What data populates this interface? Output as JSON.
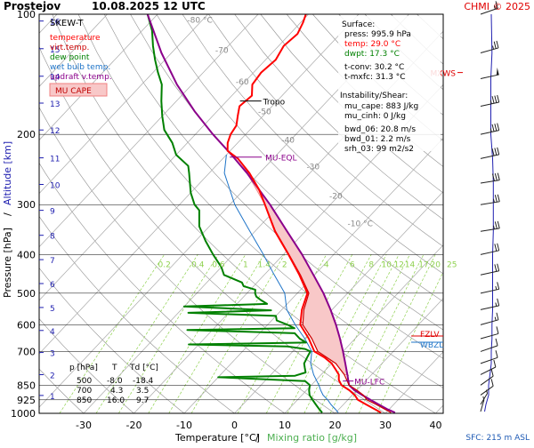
{
  "header": {
    "station": "Prostejov",
    "datetime": "10.08.2025 12 UTC",
    "copyright": "CHMI © 2025"
  },
  "colors": {
    "temperature": "#ff0000",
    "virt_temp": "#cc0000",
    "dew_point": "#008000",
    "wet_bulb": "#1e74c8",
    "updraft": "#8b008b",
    "mu_cape": "#f08080",
    "mu_cape_fill": "#f8c8c8",
    "isotherm": "#a8a8a8",
    "mixing_ratio": "#8fd14f",
    "dry_adiabat": "#909090",
    "altitude": "#2020b0",
    "isobar": "#000000",
    "wind": "#202020"
  },
  "legend": {
    "title": "SKEW-T",
    "items": [
      {
        "key": "temperature",
        "label": "temperature",
        "color": "#ff0000"
      },
      {
        "key": "virt_temp",
        "label": "virt.temp.",
        "color": "#cc0000"
      },
      {
        "key": "dew_point",
        "label": "dew point",
        "color": "#008000"
      },
      {
        "key": "wet_bulb",
        "label": "wet bulb temp.",
        "color": "#1e74c8"
      },
      {
        "key": "updraft",
        "label": "updraft v.temp.",
        "color": "#8b008b"
      }
    ],
    "cape_label": "MU CAPE"
  },
  "surface": {
    "title": "Surface:",
    "press": "press: 995.9 hPa",
    "temp": "temp: 29.0 °C",
    "dwpt": "dwpt: 17.3 °C",
    "tconv": "t-conv: 30.2 °C",
    "tmxfc": "t-mxfc: 31.3 °C"
  },
  "instability": {
    "title": "Instability/Shear:",
    "mu_cape": "mu_cape: 883 J/kg",
    "mu_cinh": "mu_cinh: 0 J/kg",
    "bwd_06": "bwd_06: 20.8 m/s",
    "bwd_01": "bwd_01: 2.2 m/s",
    "srh_03": "srh_03: 99 m2/s2"
  },
  "table": {
    "headers": [
      "p [hPa]",
      "T",
      "Td [°C]"
    ],
    "rows": [
      [
        "500",
        "-8.0",
        "-18.4"
      ],
      [
        "700",
        "4.3",
        "3.5"
      ],
      [
        "850",
        "16.0",
        "9.7"
      ]
    ]
  },
  "annotations": {
    "tropo": "Tropo",
    "mu_eql": "MU-EQL",
    "mu_lfc": "MU-LFC",
    "mxws": "MXWS",
    "fzlv": "FZLV",
    "wbzl": "WBZL",
    "sfc": "SFC: 215 m ASL"
  },
  "chart_data": {
    "type": "skew-t",
    "xlabel": "Temperature [°C]",
    "xlabel_sep": "/",
    "xlabel2": "Mixing ratio [g/kg]",
    "ylabel": "Pressure [hPa]",
    "ylabel_sep": "/",
    "ylabel2": "Altitude [km]",
    "pressure_ticks": [
      100,
      200,
      300,
      400,
      500,
      600,
      700,
      850,
      925,
      1000
    ],
    "temperature_ticks": [
      -30,
      -20,
      -10,
      0,
      10,
      20,
      30,
      40
    ],
    "xlim": [
      -35,
      42
    ],
    "ylim": [
      1000,
      100
    ],
    "isotherm_labels": [
      -80,
      -70,
      -60,
      -50,
      -40,
      -30,
      -20,
      -10
    ],
    "mixing_ratio_values": [
      "0.2",
      "0.4",
      "0.6",
      "1",
      "1.4",
      "2",
      "4",
      "6",
      "8",
      "10",
      "12",
      "14",
      "17",
      "20",
      "25"
    ],
    "altitude_km": [
      {
        "km": 1,
        "p": 902
      },
      {
        "km": 2,
        "p": 800
      },
      {
        "km": 3,
        "p": 704
      },
      {
        "km": 4,
        "p": 620
      },
      {
        "km": 5,
        "p": 543
      },
      {
        "km": 6,
        "p": 473
      },
      {
        "km": 7,
        "p": 412
      },
      {
        "km": 8,
        "p": 358
      },
      {
        "km": 9,
        "p": 310
      },
      {
        "km": 10,
        "p": 267
      },
      {
        "km": 11,
        "p": 229
      },
      {
        "km": 12,
        "p": 195
      },
      {
        "km": 13,
        "p": 167
      },
      {
        "km": 14,
        "p": 143
      },
      {
        "km": 15,
        "p": 122
      },
      {
        "km": 16,
        "p": 104
      }
    ],
    "series": [
      {
        "key": "temperature",
        "name": "temperature",
        "points": [
          [
            995.9,
            29.0
          ],
          [
            975,
            27.0
          ],
          [
            950,
            24.5
          ],
          [
            925,
            22.0
          ],
          [
            900,
            20.5
          ],
          [
            875,
            18.5
          ],
          [
            850,
            16.0
          ],
          [
            825,
            14.5
          ],
          [
            800,
            13.5
          ],
          [
            775,
            11.8
          ],
          [
            750,
            10.0
          ],
          [
            725,
            7.5
          ],
          [
            700,
            4.3
          ],
          [
            650,
            0.8
          ],
          [
            600,
            -3.5
          ],
          [
            550,
            -6.0
          ],
          [
            500,
            -8.0
          ],
          [
            450,
            -13.0
          ],
          [
            400,
            -19.0
          ],
          [
            350,
            -26.0
          ],
          [
            300,
            -33.0
          ],
          [
            275,
            -37.0
          ],
          [
            250,
            -42.0
          ],
          [
            230,
            -47.0
          ],
          [
            220,
            -50.5
          ],
          [
            210,
            -52.0
          ],
          [
            200,
            -53.0
          ],
          [
            190,
            -53.5
          ],
          [
            180,
            -55.0
          ],
          [
            170,
            -56.5
          ],
          [
            160,
            -56.0
          ],
          [
            150,
            -58.0
          ],
          [
            140,
            -58.5
          ],
          [
            130,
            -58.0
          ],
          [
            120,
            -59.0
          ],
          [
            112,
            -58.5
          ],
          [
            105,
            -59.5
          ],
          [
            100,
            -60.5
          ]
        ]
      },
      {
        "key": "virt_temp",
        "name": "virt.temp.",
        "points": [
          [
            995.9,
            31.0
          ],
          [
            950,
            26.5
          ],
          [
            925,
            23.8
          ],
          [
            900,
            22.2
          ],
          [
            875,
            20.0
          ],
          [
            850,
            17.5
          ],
          [
            800,
            14.6
          ],
          [
            750,
            10.8
          ],
          [
            700,
            5.0
          ],
          [
            650,
            1.4
          ],
          [
            600,
            -3.0
          ],
          [
            550,
            -5.6
          ],
          [
            500,
            -7.7
          ],
          [
            450,
            -12.8
          ],
          [
            400,
            -18.9
          ],
          [
            350,
            -25.9
          ],
          [
            300,
            -33.0
          ]
        ]
      },
      {
        "key": "dew_point",
        "name": "dew point",
        "points": [
          [
            995.9,
            17.3
          ],
          [
            975,
            16.0
          ],
          [
            950,
            14.5
          ],
          [
            925,
            13.0
          ],
          [
            900,
            11.5
          ],
          [
            875,
            10.5
          ],
          [
            850,
            9.7
          ],
          [
            830,
            8.0
          ],
          [
            812,
            -10.0
          ],
          [
            805,
            5.0
          ],
          [
            790,
            6.5
          ],
          [
            770,
            5.5
          ],
          [
            750,
            4.5
          ],
          [
            725,
            4.0
          ],
          [
            700,
            3.5
          ],
          [
            690,
            2.0
          ],
          [
            680,
            -2.0
          ],
          [
            672,
            -22.0
          ],
          [
            665,
            1.0
          ],
          [
            650,
            -1.0
          ],
          [
            630,
            -3.0
          ],
          [
            618,
            -25.0
          ],
          [
            612,
            -4.0
          ],
          [
            600,
            -6.0
          ],
          [
            585,
            -9.0
          ],
          [
            570,
            -10.0
          ],
          [
            560,
            -28.0
          ],
          [
            552,
            -12.0
          ],
          [
            540,
            -30.0
          ],
          [
            532,
            -14.0
          ],
          [
            520,
            -16.0
          ],
          [
            510,
            -17.5
          ],
          [
            500,
            -18.4
          ],
          [
            490,
            -19.0
          ],
          [
            480,
            -22.0
          ],
          [
            470,
            -23.0
          ],
          [
            450,
            -28.0
          ],
          [
            430,
            -30.0
          ],
          [
            400,
            -34.0
          ],
          [
            370,
            -38.0
          ],
          [
            340,
            -42.0
          ],
          [
            310,
            -45.0
          ],
          [
            300,
            -47.0
          ],
          [
            280,
            -50.0
          ],
          [
            250,
            -54.0
          ],
          [
            240,
            -55.5
          ],
          [
            225,
            -60.0
          ],
          [
            210,
            -63.0
          ],
          [
            195,
            -67.0
          ],
          [
            180,
            -70.0
          ],
          [
            165,
            -73.0
          ],
          [
            150,
            -76.0
          ],
          [
            140,
            -79.0
          ],
          [
            130,
            -82.0
          ],
          [
            120,
            -85.0
          ],
          [
            110,
            -88.0
          ],
          [
            100,
            -92.0
          ]
        ]
      },
      {
        "key": "wet_bulb",
        "name": "wet bulb temp.",
        "points": [
          [
            995.9,
            20.5
          ],
          [
            975,
            19.2
          ],
          [
            950,
            17.5
          ],
          [
            925,
            16.0
          ],
          [
            900,
            14.2
          ],
          [
            875,
            12.8
          ],
          [
            850,
            11.5
          ],
          [
            800,
            8.5
          ],
          [
            750,
            5.8
          ],
          [
            700,
            3.8
          ],
          [
            650,
            0.0
          ],
          [
            600,
            -4.5
          ],
          [
            550,
            -9.0
          ],
          [
            500,
            -12.5
          ],
          [
            450,
            -18.0
          ],
          [
            400,
            -24.0
          ],
          [
            350,
            -31.0
          ],
          [
            300,
            -39.0
          ],
          [
            250,
            -47.0
          ],
          [
            225,
            -50.0
          ]
        ]
      },
      {
        "key": "updraft",
        "name": "updraft v.temp.",
        "points": [
          [
            995.9,
            31.8
          ],
          [
            975,
            29.5
          ],
          [
            950,
            27.0
          ],
          [
            925,
            24.5
          ],
          [
            900,
            22.0
          ],
          [
            875,
            19.5
          ],
          [
            850,
            17.5
          ],
          [
            800,
            15.2
          ],
          [
            750,
            12.7
          ],
          [
            700,
            10.0
          ],
          [
            650,
            7.0
          ],
          [
            600,
            3.6
          ],
          [
            550,
            -0.3
          ],
          [
            500,
            -4.8
          ],
          [
            450,
            -10.2
          ],
          [
            400,
            -16.3
          ],
          [
            350,
            -23.6
          ],
          [
            300,
            -32.0
          ],
          [
            275,
            -37.0
          ],
          [
            250,
            -42.5
          ],
          [
            225,
            -49.0
          ],
          [
            200,
            -56.5
          ],
          [
            175,
            -64.5
          ],
          [
            150,
            -73.0
          ],
          [
            125,
            -82.0
          ],
          [
            100,
            -92.0
          ]
        ]
      }
    ],
    "tropopause_hPa": 165,
    "mu_eql_hPa": 228,
    "mu_lfc_hPa": 830,
    "mxws_hPa": 140,
    "fzlv_hPa": 640,
    "wbzl_hPa": 650,
    "wind_profile": [
      {
        "p": 100,
        "dir": 240,
        "kt": 15
      },
      {
        "p": 125,
        "dir": 245,
        "kt": 25
      },
      {
        "p": 145,
        "dir": 250,
        "kt": 50
      },
      {
        "p": 170,
        "dir": 250,
        "kt": 35
      },
      {
        "p": 200,
        "dir": 250,
        "kt": 35
      },
      {
        "p": 230,
        "dir": 250,
        "kt": 30
      },
      {
        "p": 265,
        "dir": 255,
        "kt": 30
      },
      {
        "p": 300,
        "dir": 255,
        "kt": 25
      },
      {
        "p": 350,
        "dir": 255,
        "kt": 25
      },
      {
        "p": 400,
        "dir": 250,
        "kt": 20
      },
      {
        "p": 450,
        "dir": 250,
        "kt": 20
      },
      {
        "p": 500,
        "dir": 250,
        "kt": 15
      },
      {
        "p": 550,
        "dir": 250,
        "kt": 15
      },
      {
        "p": 600,
        "dir": 245,
        "kt": 15
      },
      {
        "p": 650,
        "dir": 245,
        "kt": 10
      },
      {
        "p": 700,
        "dir": 240,
        "kt": 10
      },
      {
        "p": 750,
        "dir": 240,
        "kt": 10
      },
      {
        "p": 800,
        "dir": 230,
        "kt": 10
      },
      {
        "p": 850,
        "dir": 220,
        "kt": 10
      },
      {
        "p": 900,
        "dir": 220,
        "kt": 10
      },
      {
        "p": 950,
        "dir": 200,
        "kt": 5
      },
      {
        "p": 990,
        "dir": 190,
        "kt": 5
      }
    ]
  }
}
